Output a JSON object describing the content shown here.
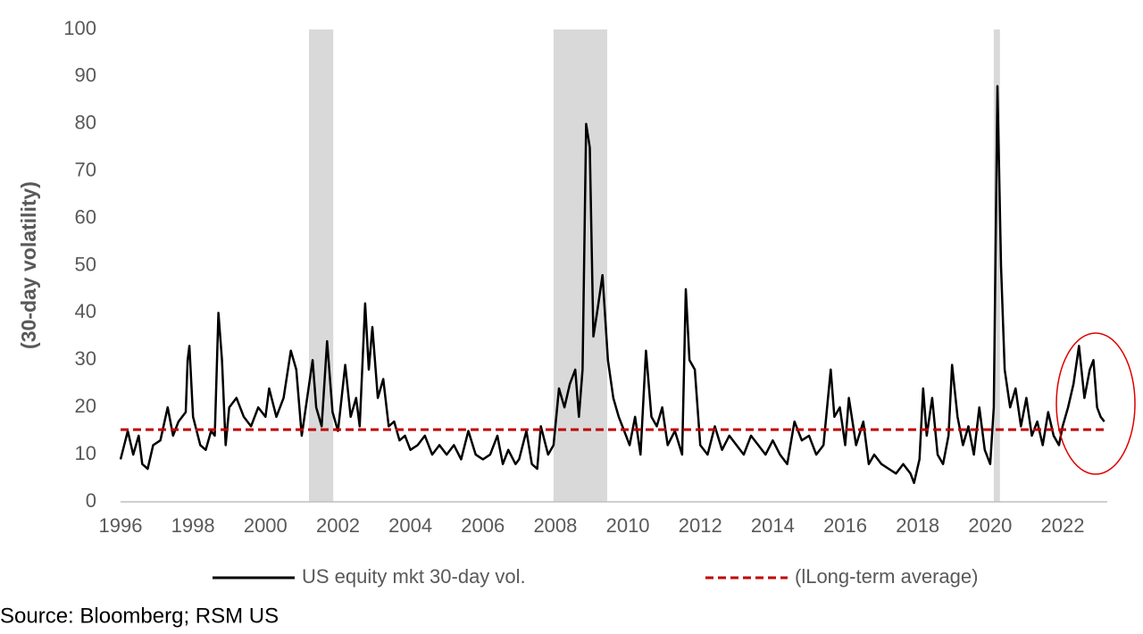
{
  "chart_data": {
    "type": "line",
    "y_label": "(30-day volatility)",
    "source": "Source: Bloomberg; RSM US",
    "xlim": [
      1996,
      2023.2
    ],
    "xticks": [
      1996,
      1998,
      2000,
      2002,
      2004,
      2006,
      2008,
      2010,
      2012,
      2014,
      2016,
      2018,
      2020,
      2022
    ],
    "ylim": [
      0,
      100
    ],
    "yticks": [
      0,
      10,
      20,
      30,
      40,
      50,
      60,
      70,
      80,
      90,
      100
    ],
    "grid": false,
    "legend": "bottom",
    "shaded_periods": [
      [
        2001.2,
        2001.87
      ],
      [
        2007.95,
        2009.43
      ],
      [
        2020.1,
        2020.27
      ]
    ],
    "shade_color": "#d9d9d9",
    "series": [
      {
        "name": "US equity mkt 30-day vol.",
        "color": "#000000",
        "style": "solid",
        "x": [
          1996.0,
          1996.1,
          1996.2,
          1996.35,
          1996.5,
          1996.6,
          1996.75,
          1996.9,
          1997.1,
          1997.3,
          1997.45,
          1997.6,
          1997.8,
          1997.85,
          1997.9,
          1998.0,
          1998.2,
          1998.35,
          1998.5,
          1998.6,
          1998.7,
          1998.8,
          1998.9,
          1999.0,
          1999.2,
          1999.4,
          1999.6,
          1999.8,
          2000.0,
          2000.1,
          2000.3,
          2000.5,
          2000.7,
          2000.85,
          2001.0,
          2001.15,
          2001.3,
          2001.4,
          2001.55,
          2001.7,
          2001.85,
          2002.0,
          2002.2,
          2002.35,
          2002.5,
          2002.6,
          2002.75,
          2002.85,
          2002.95,
          2003.1,
          2003.25,
          2003.4,
          2003.55,
          2003.7,
          2003.85,
          2004.0,
          2004.2,
          2004.4,
          2004.6,
          2004.8,
          2005.0,
          2005.2,
          2005.4,
          2005.6,
          2005.8,
          2006.0,
          2006.2,
          2006.4,
          2006.55,
          2006.7,
          2006.9,
          2007.0,
          2007.2,
          2007.35,
          2007.5,
          2007.6,
          2007.8,
          2007.95,
          2008.1,
          2008.25,
          2008.4,
          2008.55,
          2008.65,
          2008.75,
          2008.85,
          2008.95,
          2009.05,
          2009.15,
          2009.3,
          2009.45,
          2009.6,
          2009.75,
          2009.9,
          2010.05,
          2010.2,
          2010.35,
          2010.5,
          2010.65,
          2010.8,
          2010.95,
          2011.1,
          2011.3,
          2011.5,
          2011.6,
          2011.7,
          2011.85,
          2012.0,
          2012.2,
          2012.4,
          2012.6,
          2012.8,
          2013.0,
          2013.2,
          2013.4,
          2013.6,
          2013.8,
          2014.0,
          2014.2,
          2014.4,
          2014.6,
          2014.8,
          2015.0,
          2015.2,
          2015.4,
          2015.6,
          2015.7,
          2015.85,
          2016.0,
          2016.1,
          2016.3,
          2016.5,
          2016.65,
          2016.8,
          2017.0,
          2017.2,
          2017.4,
          2017.6,
          2017.8,
          2017.9,
          2018.05,
          2018.15,
          2018.25,
          2018.4,
          2018.55,
          2018.7,
          2018.85,
          2018.95,
          2019.1,
          2019.25,
          2019.4,
          2019.55,
          2019.7,
          2019.85,
          2020.0,
          2020.1,
          2020.2,
          2020.3,
          2020.4,
          2020.55,
          2020.7,
          2020.85,
          2021.0,
          2021.15,
          2021.3,
          2021.45,
          2021.6,
          2021.75,
          2021.9,
          2022.0,
          2022.15,
          2022.3,
          2022.45,
          2022.6,
          2022.75,
          2022.85,
          2022.95,
          2023.05,
          2023.15
        ],
        "values": [
          9,
          12,
          15,
          10,
          14,
          8,
          7,
          12,
          13,
          20,
          14,
          17,
          19,
          30,
          33,
          18,
          12,
          11,
          15,
          14,
          40,
          30,
          12,
          20,
          22,
          18,
          16,
          20,
          18,
          24,
          18,
          22,
          32,
          28,
          14,
          22,
          30,
          20,
          16,
          34,
          19,
          15,
          29,
          18,
          22,
          16,
          42,
          28,
          37,
          22,
          26,
          16,
          17,
          13,
          14,
          11,
          12,
          14,
          10,
          12,
          10,
          12,
          9,
          15,
          10,
          9,
          10,
          14,
          8,
          11,
          8,
          9,
          15,
          8,
          7,
          16,
          10,
          12,
          24,
          20,
          25,
          28,
          18,
          28,
          80,
          75,
          35,
          40,
          48,
          30,
          22,
          18,
          15,
          12,
          18,
          10,
          32,
          18,
          16,
          20,
          12,
          15,
          10,
          45,
          30,
          28,
          12,
          10,
          16,
          11,
          14,
          12,
          10,
          14,
          12,
          10,
          13,
          10,
          8,
          17,
          13,
          14,
          10,
          12,
          28,
          18,
          20,
          12,
          22,
          12,
          17,
          8,
          10,
          8,
          7,
          6,
          8,
          6,
          4,
          9,
          24,
          14,
          22,
          10,
          8,
          14,
          29,
          18,
          12,
          16,
          10,
          20,
          11,
          8,
          20,
          88,
          50,
          28,
          20,
          24,
          16,
          22,
          14,
          17,
          12,
          19,
          14,
          12,
          16,
          20,
          25,
          33,
          22,
          28,
          30,
          20,
          18,
          17
        ]
      },
      {
        "name": "(lLong-term average)",
        "color": "#c00000",
        "style": "dashed",
        "x": [
          1996,
          2023.2
        ],
        "values": [
          15.3,
          15.3
        ]
      }
    ]
  }
}
